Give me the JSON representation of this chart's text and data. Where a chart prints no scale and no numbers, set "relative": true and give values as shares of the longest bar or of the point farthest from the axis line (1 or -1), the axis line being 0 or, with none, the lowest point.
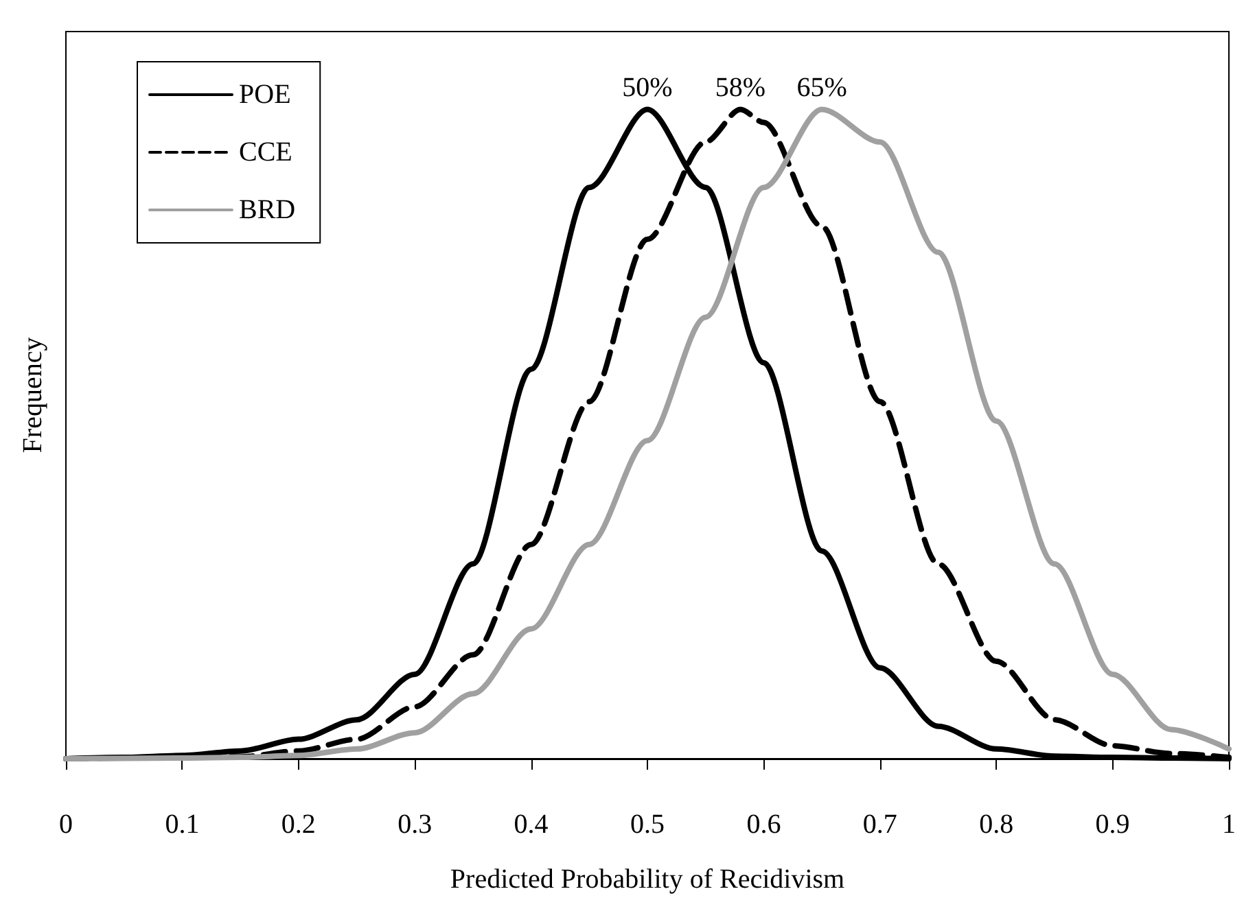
{
  "chart_data": {
    "type": "line",
    "relative": true,
    "xlabel": "Predicted Probability of Recidivism",
    "ylabel": "Frequency",
    "x": [
      0,
      0.05,
      0.1,
      0.15,
      0.2,
      0.25,
      0.3,
      0.35,
      0.4,
      0.45,
      0.5,
      0.55,
      0.6,
      0.65,
      0.7,
      0.75,
      0.8,
      0.85,
      0.9,
      0.95,
      1
    ],
    "xlim": [
      0,
      1
    ],
    "xticks": [
      0,
      0.1,
      0.2,
      0.3,
      0.4,
      0.5,
      0.6,
      0.7,
      0.8,
      0.9,
      1
    ],
    "series": [
      {
        "name": "POE",
        "color": "#000000",
        "line_style": "solid",
        "values": [
          0,
          0.002,
          0.005,
          0.012,
          0.03,
          0.06,
          0.13,
          0.3,
          0.6,
          0.88,
          1,
          0.88,
          0.61,
          0.32,
          0.14,
          0.05,
          0.015,
          0.004,
          0.002,
          0.001,
          0
        ]
      },
      {
        "name": "CCE",
        "color": "#000000",
        "line_style": "dashed",
        "x": [
          0,
          0.05,
          0.1,
          0.15,
          0.2,
          0.25,
          0.3,
          0.35,
          0.4,
          0.45,
          0.5,
          0.55,
          0.58,
          0.6,
          0.65,
          0.7,
          0.75,
          0.8,
          0.85,
          0.9,
          0.95,
          1
        ],
        "values": [
          0,
          0.001,
          0.002,
          0.003,
          0.012,
          0.03,
          0.08,
          0.16,
          0.33,
          0.55,
          0.8,
          0.95,
          1,
          0.98,
          0.82,
          0.55,
          0.3,
          0.15,
          0.06,
          0.02,
          0.008,
          0.002
        ]
      },
      {
        "name": "BRD",
        "color": "#a0a0a0",
        "line_style": "solid",
        "values": [
          0,
          0.0005,
          0.001,
          0.002,
          0.005,
          0.015,
          0.04,
          0.1,
          0.2,
          0.33,
          0.49,
          0.68,
          0.88,
          1,
          0.95,
          0.78,
          0.52,
          0.3,
          0.13,
          0.045,
          0.015
        ]
      }
    ],
    "annotations": [
      {
        "text": "50%",
        "x": 0.5,
        "y": 1
      },
      {
        "text": "58%",
        "x": 0.58,
        "y": 1
      },
      {
        "text": "65%",
        "x": 0.65,
        "y": 1
      }
    ],
    "legend": "top left",
    "grid": false,
    "marker": "none"
  }
}
